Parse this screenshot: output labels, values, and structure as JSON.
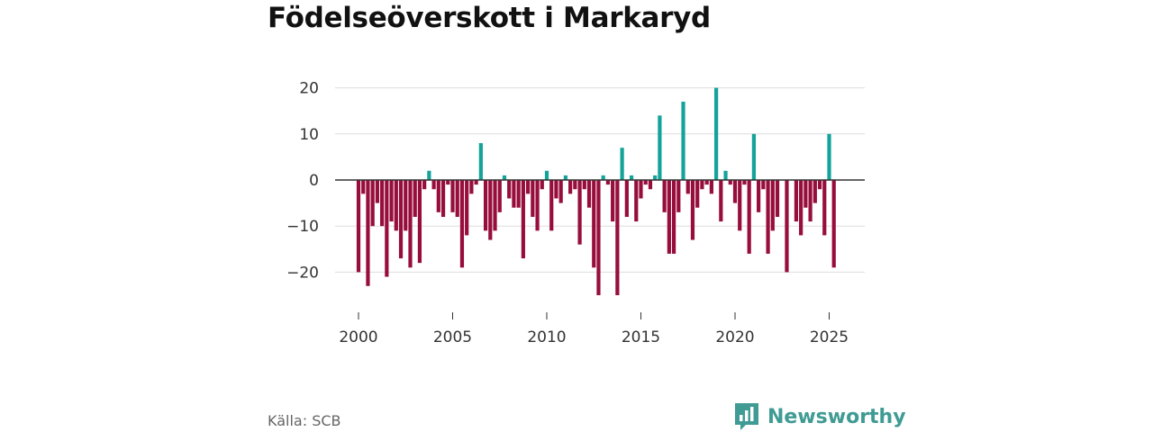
{
  "colors": {
    "positive": "#13a39a",
    "negative": "#970d3c",
    "grid": "#dddddd",
    "zero": "#333333",
    "brand": "#3f9b93"
  },
  "source": "Källa: SCB",
  "brand": {
    "name": "Newsworthy"
  },
  "chart_data": {
    "type": "bar",
    "title": "Födelseöverskott i Markaryd",
    "xlabel": "",
    "ylabel": "",
    "xlim": [
      1999.5,
      2026.7
    ],
    "ylim": [
      -27,
      20
    ],
    "yticks": [
      20,
      10,
      0,
      -10,
      -20
    ],
    "ytick_labels": [
      "20",
      "10",
      "0",
      "−10",
      "−20"
    ],
    "xticks": [
      2000,
      2005,
      2010,
      2015,
      2020,
      2025
    ],
    "xtick_labels": [
      "2000",
      "2005",
      "2010",
      "2015",
      "2020",
      "2025"
    ],
    "grid": true,
    "start": 2000.0,
    "step": 0.25,
    "values": [
      -20,
      -3,
      -23,
      -10,
      -5,
      -10,
      -21,
      -9,
      -11,
      -17,
      -11,
      -19,
      -8,
      -18,
      -2,
      2,
      -2,
      -7,
      -8,
      -1,
      -7,
      -8,
      -19,
      -12,
      -3,
      -1,
      8,
      -11,
      -13,
      -11,
      -7,
      1,
      -4,
      -6,
      -6,
      -17,
      -3,
      -8,
      -11,
      -2,
      2,
      -11,
      -4,
      -5,
      1,
      -3,
      -2,
      -14,
      -2,
      -6,
      -19,
      -25,
      1,
      -1,
      -9,
      -25,
      7,
      -8,
      1,
      -9,
      -4,
      -1,
      -2,
      1,
      14,
      -7,
      -16,
      -16,
      -7,
      17,
      -3,
      -13,
      -6,
      -2,
      -1,
      -3,
      20,
      -9,
      2,
      -1,
      -5,
      -11,
      -1,
      -16,
      10,
      -7,
      -2,
      -16,
      -11,
      -8,
      0,
      -20,
      0,
      -9,
      -12,
      -6,
      -9,
      -5,
      -2,
      -12,
      10,
      -19
    ]
  }
}
